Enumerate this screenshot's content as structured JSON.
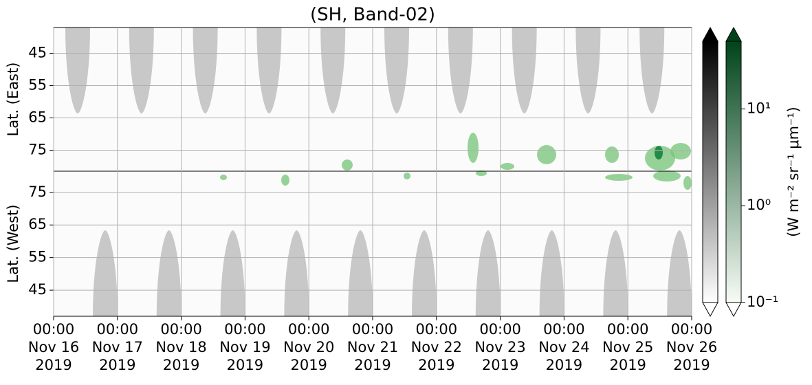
{
  "chart_data": {
    "type": "heatmap",
    "title": "(SH, Band-02)",
    "xlim": [
      "2019-11-16T00:00",
      "2019-11-26T00:00"
    ],
    "xticks": [
      {
        "value": "2019-11-16T00:00",
        "label": "00:00\nNov 16\n2019"
      },
      {
        "value": "2019-11-17T00:00",
        "label": "00:00\nNov 17\n2019"
      },
      {
        "value": "2019-11-18T00:00",
        "label": "00:00\nNov 18\n2019"
      },
      {
        "value": "2019-11-19T00:00",
        "label": "00:00\nNov 19\n2019"
      },
      {
        "value": "2019-11-20T00:00",
        "label": "00:00\nNov 20\n2019"
      },
      {
        "value": "2019-11-21T00:00",
        "label": "00:00\nNov 21\n2019"
      },
      {
        "value": "2019-11-22T00:00",
        "label": "00:00\nNov 22\n2019"
      },
      {
        "value": "2019-11-23T00:00",
        "label": "00:00\nNov 23\n2019"
      },
      {
        "value": "2019-11-24T00:00",
        "label": "00:00\nNov 24\n2019"
      },
      {
        "value": "2019-11-25T00:00",
        "label": "00:00\nNov 25\n2019"
      },
      {
        "value": "2019-11-26T00:00",
        "label": "00:00\nNov 26\n2019"
      }
    ],
    "panels": [
      {
        "ylabel": "Lat. (East)",
        "ylim": [
          37,
          81.5
        ],
        "yticks": [
          45,
          55,
          65,
          75
        ]
      },
      {
        "ylabel": "Lat. (West)",
        "ylim": [
          81.5,
          37
        ],
        "yticks": [
          75,
          65,
          55,
          45
        ]
      }
    ],
    "colorbar": {
      "label": "(W m⁻² sr⁻¹ μm⁻¹)",
      "scale": "log",
      "lim": [
        0.1,
        50
      ],
      "ticks": [
        {
          "value": 0.1,
          "label": "10⁻¹"
        },
        {
          "value": 1,
          "label": "10⁰"
        },
        {
          "value": 10,
          "label": "10¹"
        }
      ],
      "colors": [
        [
          "#ffffff",
          "#000000"
        ],
        [
          "#f7fcf5",
          "#00441b"
        ]
      ]
    },
    "grid": true
  }
}
